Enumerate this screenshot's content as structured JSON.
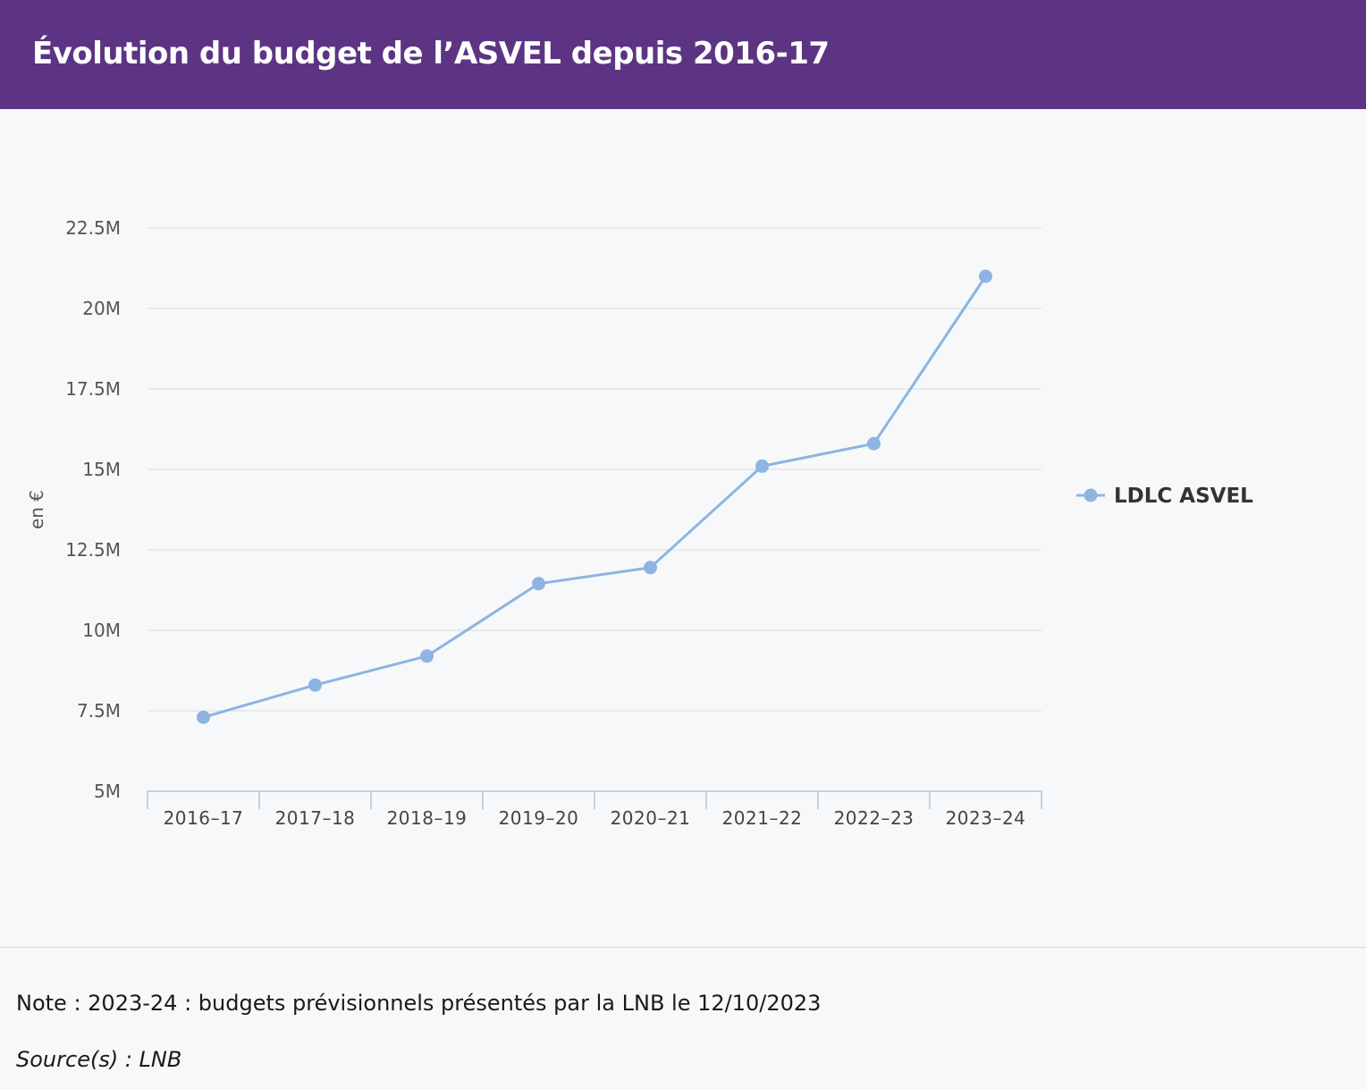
{
  "header": {
    "title": "Évolution du budget de l’ASVEL depuis 2016-17"
  },
  "colors": {
    "header_bg": "#5c3483",
    "series": "#8db4e2",
    "grid": "#e3e5e8",
    "axis": "#c5d0e6"
  },
  "chart_data": {
    "type": "line",
    "title": "Évolution du budget de l’ASVEL depuis 2016-17",
    "xlabel": "",
    "ylabel": "en €",
    "categories": [
      "2016–17",
      "2017–18",
      "2018–19",
      "2019–20",
      "2020–21",
      "2021–22",
      "2022–23",
      "2023–24"
    ],
    "series": [
      {
        "name": "LDLC ASVEL",
        "values": [
          7.3,
          8.3,
          9.2,
          11.45,
          11.95,
          15.1,
          15.8,
          21.0
        ]
      }
    ],
    "ylim": [
      5,
      22.5
    ],
    "yticks": [
      5,
      7.5,
      10,
      12.5,
      15,
      17.5,
      20,
      22.5
    ],
    "ytick_labels": [
      "5M",
      "7.5M",
      "10M",
      "12.5M",
      "15M",
      "17.5M",
      "20M",
      "22.5M"
    ],
    "legend_position": "right",
    "grid": true
  },
  "footer": {
    "note": "Note : 2023-24 : budgets prévisionnels présentés par la LNB le 12/10/2023",
    "source": "Source(s) : LNB"
  }
}
